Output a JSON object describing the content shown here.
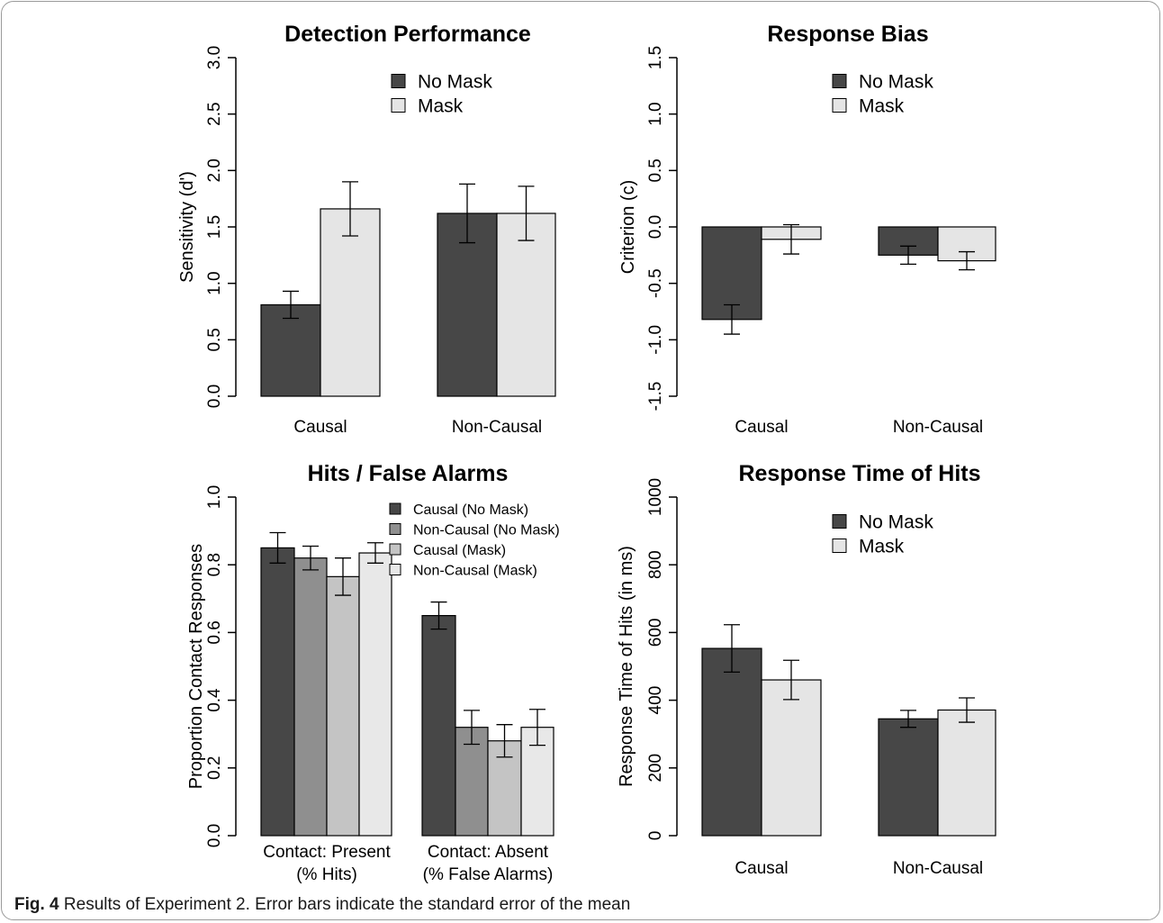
{
  "caption": {
    "label": "Fig. 4",
    "text": "Results of Experiment 2. Error bars indicate the standard error of the mean"
  },
  "colors": {
    "no_mask": "#474747",
    "mask": "#e5e5e5",
    "causal_no_mask": "#474747",
    "noncausal_no_mask": "#8f8f8f",
    "causal_mask": "#c4c4c4",
    "noncausal_mask": "#e8e8e8",
    "stroke": "#000000"
  },
  "chart_data": [
    {
      "type": "bar",
      "title": "Detection Performance",
      "ylabel": "Sensitivity (d')",
      "xlabel": "",
      "ylim": [
        0,
        3
      ],
      "yticks": [
        0,
        0.5,
        1,
        1.5,
        2,
        2.5,
        3
      ],
      "ytick_labels": [
        "0.0",
        "0.5",
        "1.0",
        "1.5",
        "2.0",
        "2.5",
        "3.0"
      ],
      "categories": [
        "Causal",
        "Non-Causal"
      ],
      "series": [
        {
          "name": "No Mask",
          "values": [
            0.81,
            1.62
          ],
          "errors": [
            0.12,
            0.26
          ]
        },
        {
          "name": "Mask",
          "values": [
            1.66,
            1.62
          ],
          "errors": [
            0.24,
            0.24
          ]
        }
      ],
      "legend": "top-right",
      "grid": false
    },
    {
      "type": "bar",
      "title": "Response Bias",
      "ylabel": "Criterion (c)",
      "xlabel": "",
      "ylim": [
        -1.5,
        1.5
      ],
      "yticks": [
        -1.5,
        -1,
        -0.5,
        0,
        0.5,
        1,
        1.5
      ],
      "ytick_labels": [
        "-1.5",
        "-1.0",
        "-0.5",
        "0.0",
        "0.5",
        "1.0",
        "1.5"
      ],
      "categories": [
        "Causal",
        "Non-Causal"
      ],
      "series": [
        {
          "name": "No Mask",
          "values": [
            -0.82,
            -0.25
          ],
          "errors": [
            0.13,
            0.08
          ]
        },
        {
          "name": "Mask",
          "values": [
            -0.11,
            -0.3
          ],
          "errors": [
            0.13,
            0.08
          ]
        }
      ],
      "legend": "top-right",
      "grid": false
    },
    {
      "type": "bar",
      "title": "Hits / False Alarms",
      "ylabel": "Proportion Contact Responses",
      "xlabel": "",
      "ylim": [
        0,
        1
      ],
      "yticks": [
        0,
        0.2,
        0.4,
        0.6,
        0.8,
        1
      ],
      "ytick_labels": [
        "0.0",
        "0.2",
        "0.4",
        "0.6",
        "0.8",
        "1.0"
      ],
      "categories": [
        "Contact: Present\n(% Hits)",
        "Contact: Absent\n(% False Alarms)"
      ],
      "series": [
        {
          "name": "Causal (No Mask)",
          "values": [
            0.85,
            0.65
          ],
          "errors": [
            0.045,
            0.04
          ]
        },
        {
          "name": "Non-Causal (No Mask)",
          "values": [
            0.82,
            0.32
          ],
          "errors": [
            0.035,
            0.05
          ]
        },
        {
          "name": "Causal (Mask)",
          "values": [
            0.765,
            0.28
          ],
          "errors": [
            0.055,
            0.048
          ]
        },
        {
          "name": "Non-Causal (Mask)",
          "values": [
            0.835,
            0.32
          ],
          "errors": [
            0.03,
            0.053
          ]
        }
      ],
      "legend": "top-right",
      "grid": false
    },
    {
      "type": "bar",
      "title": "Response Time of Hits",
      "ylabel": "Response Time of Hits (in ms)",
      "xlabel": "",
      "ylim": [
        0,
        1000
      ],
      "yticks": [
        0,
        200,
        400,
        600,
        800,
        1000
      ],
      "ytick_labels": [
        "0",
        "200",
        "400",
        "600",
        "800",
        "1000"
      ],
      "categories": [
        "Causal",
        "Non-Causal"
      ],
      "series": [
        {
          "name": "No Mask",
          "values": [
            553,
            345
          ],
          "errors": [
            70,
            25
          ]
        },
        {
          "name": "Mask",
          "values": [
            460,
            371
          ],
          "errors": [
            58,
            36
          ]
        }
      ],
      "legend": "top-right",
      "grid": false
    }
  ]
}
